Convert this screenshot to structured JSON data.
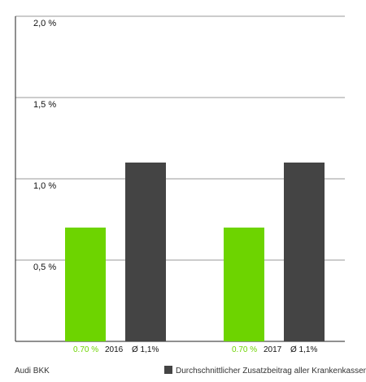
{
  "chart_data": {
    "type": "bar",
    "categories": [
      "2016",
      "2017"
    ],
    "ylim": [
      0,
      2.0
    ],
    "yticks": [
      {
        "value": 0.5,
        "label": "0,5 %"
      },
      {
        "value": 1.0,
        "label": "1,0 %"
      },
      {
        "value": 1.5,
        "label": "1,5 %"
      },
      {
        "value": 2.0,
        "label": "2,0 %"
      }
    ],
    "series": [
      {
        "name": "Audi BKK",
        "values": [
          0.7,
          0.7
        ],
        "value_labels": [
          "0.70 %",
          "0.70 %"
        ],
        "color": "#6dd400"
      },
      {
        "name": "Durchschnittlicher Zusatzbeitrag aller Krankenkassen",
        "values": [
          1.1,
          1.1
        ],
        "value_labels": [
          "Ø 1,1%",
          "Ø 1,1%"
        ],
        "color": "#444444"
      }
    ],
    "grid": true,
    "legend": "bottom"
  },
  "colors": {
    "green": "#6dd400",
    "dark": "#444444",
    "grid": "#9a9a9a",
    "axis": "#222222"
  }
}
